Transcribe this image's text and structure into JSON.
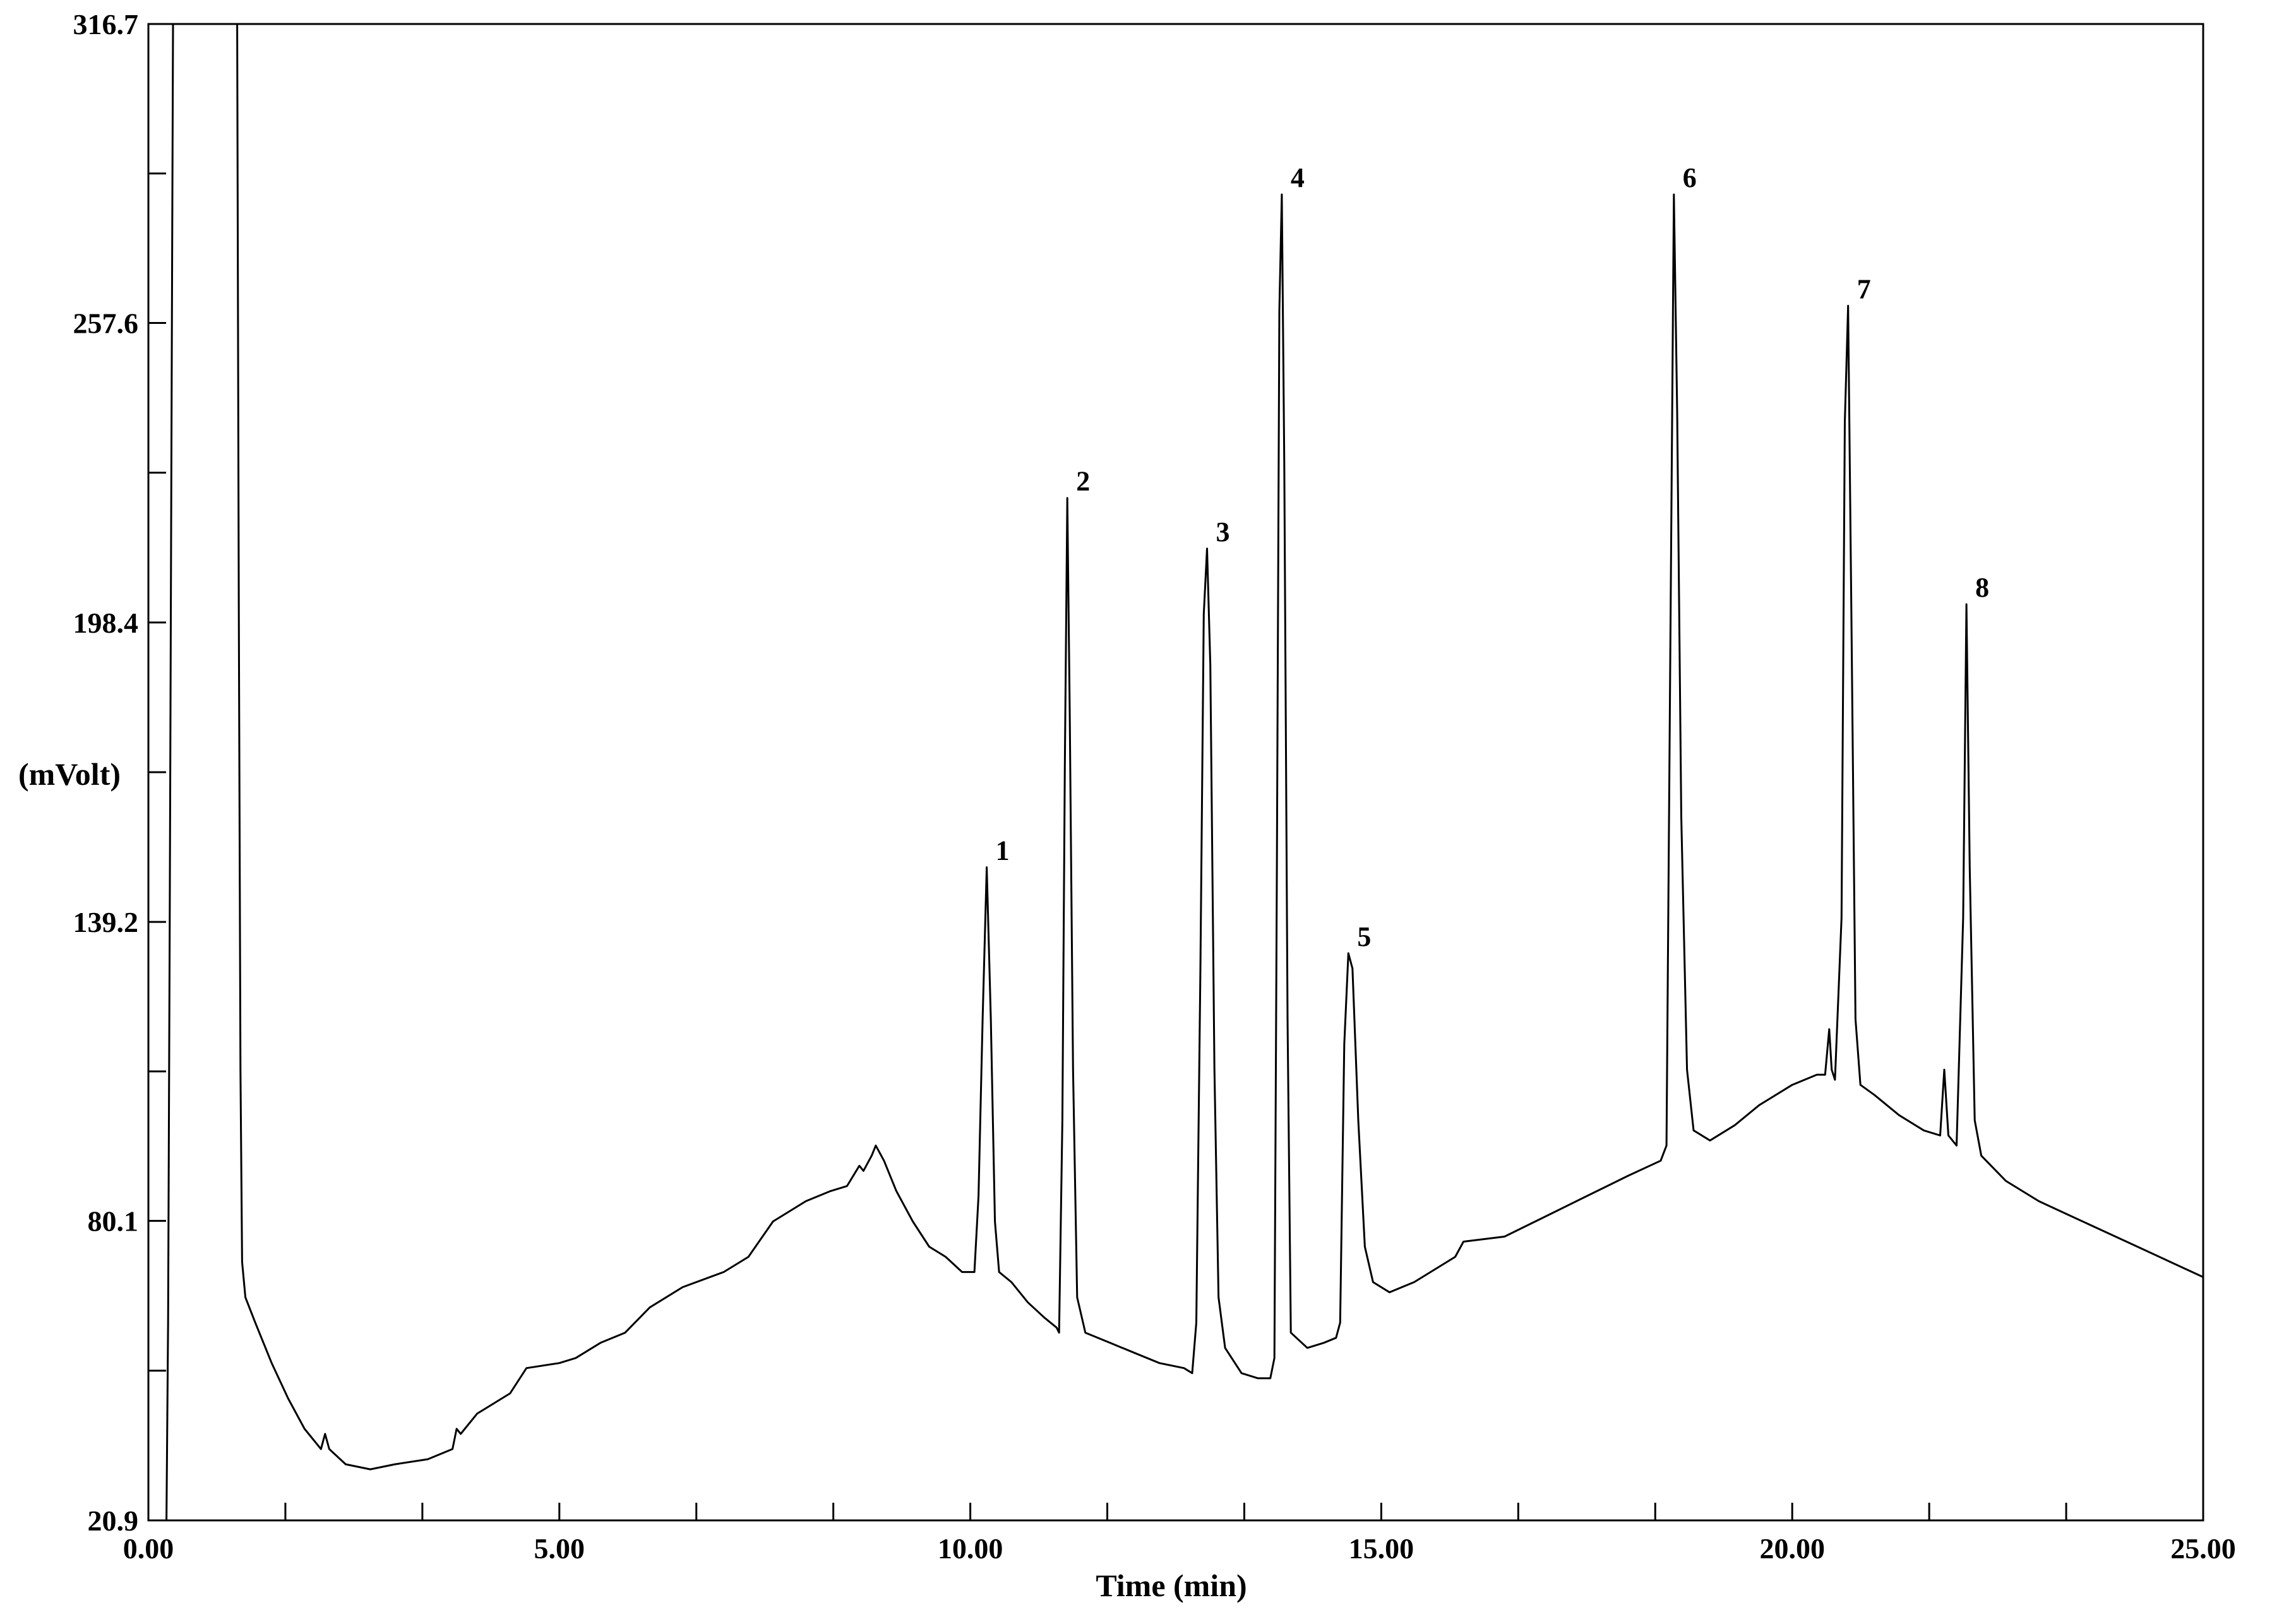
{
  "chart_data": {
    "type": "line",
    "title": "",
    "xlabel": "Time (min)",
    "ylabel": "(mVolt)",
    "xlim": [
      0,
      25
    ],
    "ylim": [
      20.9,
      316.7
    ],
    "x_ticks": [
      "0.00",
      "5.00",
      "10.00",
      "15.00",
      "20.00",
      "25.00"
    ],
    "y_ticks": [
      "20.9",
      "80.1",
      "139.2",
      "198.4",
      "257.6",
      "316.7"
    ],
    "grid": false,
    "series": [
      {
        "name": "",
        "color": "#000000",
        "points": [
          [
            0.22,
            20.9
          ],
          [
            0.24,
            60
          ],
          [
            0.26,
            140
          ],
          [
            0.28,
            230
          ],
          [
            0.3,
            316.7
          ],
          [
            1.08,
            316.7
          ],
          [
            1.1,
            200
          ],
          [
            1.12,
            110
          ],
          [
            1.14,
            72
          ],
          [
            1.18,
            65
          ],
          [
            1.3,
            60
          ],
          [
            1.5,
            52
          ],
          [
            1.7,
            45
          ],
          [
            1.9,
            39
          ],
          [
            2.0,
            37
          ],
          [
            2.1,
            35
          ],
          [
            2.15,
            38
          ],
          [
            2.2,
            35
          ],
          [
            2.4,
            32
          ],
          [
            2.7,
            31
          ],
          [
            3.0,
            32
          ],
          [
            3.4,
            33
          ],
          [
            3.7,
            35
          ],
          [
            3.75,
            39
          ],
          [
            3.8,
            38
          ],
          [
            4.0,
            42
          ],
          [
            4.4,
            46
          ],
          [
            4.6,
            51
          ],
          [
            5.0,
            52
          ],
          [
            5.2,
            53
          ],
          [
            5.5,
            56
          ],
          [
            5.8,
            58
          ],
          [
            6.1,
            63
          ],
          [
            6.5,
            67
          ],
          [
            7.0,
            70
          ],
          [
            7.3,
            73
          ],
          [
            7.6,
            80
          ],
          [
            8.0,
            84
          ],
          [
            8.3,
            86
          ],
          [
            8.5,
            87
          ],
          [
            8.65,
            91
          ],
          [
            8.7,
            90
          ],
          [
            8.8,
            93
          ],
          [
            8.85,
            95
          ],
          [
            8.95,
            92
          ],
          [
            9.1,
            86
          ],
          [
            9.3,
            80
          ],
          [
            9.5,
            75
          ],
          [
            9.7,
            73
          ],
          [
            9.9,
            70
          ],
          [
            10.05,
            70
          ],
          [
            10.1,
            85
          ],
          [
            10.15,
            120
          ],
          [
            10.2,
            150
          ],
          [
            10.25,
            120
          ],
          [
            10.3,
            80
          ],
          [
            10.35,
            70
          ],
          [
            10.5,
            68
          ],
          [
            10.7,
            64
          ],
          [
            10.9,
            61
          ],
          [
            11.05,
            59
          ],
          [
            11.08,
            58
          ],
          [
            11.12,
            100
          ],
          [
            11.15,
            170
          ],
          [
            11.18,
            223
          ],
          [
            11.21,
            180
          ],
          [
            11.25,
            110
          ],
          [
            11.3,
            65
          ],
          [
            11.4,
            58
          ],
          [
            11.7,
            56
          ],
          [
            12.0,
            54
          ],
          [
            12.3,
            52
          ],
          [
            12.6,
            51
          ],
          [
            12.7,
            50
          ],
          [
            12.75,
            60
          ],
          [
            12.8,
            130
          ],
          [
            12.84,
            200
          ],
          [
            12.88,
            213
          ],
          [
            12.92,
            190
          ],
          [
            12.97,
            110
          ],
          [
            13.02,
            65
          ],
          [
            13.1,
            55
          ],
          [
            13.3,
            50
          ],
          [
            13.5,
            49
          ],
          [
            13.65,
            49
          ],
          [
            13.7,
            53
          ],
          [
            13.73,
            150
          ],
          [
            13.76,
            260
          ],
          [
            13.79,
            283
          ],
          [
            13.82,
            230
          ],
          [
            13.86,
            120
          ],
          [
            13.9,
            58
          ],
          [
            14.1,
            55
          ],
          [
            14.3,
            56
          ],
          [
            14.45,
            57
          ],
          [
            14.5,
            60
          ],
          [
            14.55,
            115
          ],
          [
            14.6,
            133
          ],
          [
            14.65,
            130
          ],
          [
            14.72,
            100
          ],
          [
            14.8,
            75
          ],
          [
            14.9,
            68
          ],
          [
            15.1,
            66
          ],
          [
            15.4,
            68
          ],
          [
            15.7,
            71
          ],
          [
            15.9,
            73
          ],
          [
            16.0,
            76
          ],
          [
            16.5,
            77
          ],
          [
            17.0,
            81
          ],
          [
            17.5,
            85
          ],
          [
            18.0,
            89
          ],
          [
            18.4,
            92
          ],
          [
            18.47,
            95
          ],
          [
            18.52,
            200
          ],
          [
            18.56,
            283
          ],
          [
            18.6,
            240
          ],
          [
            18.65,
            160
          ],
          [
            18.72,
            110
          ],
          [
            18.8,
            98
          ],
          [
            19.0,
            96
          ],
          [
            19.3,
            99
          ],
          [
            19.6,
            103
          ],
          [
            20.0,
            107
          ],
          [
            20.3,
            109
          ],
          [
            20.4,
            109
          ],
          [
            20.45,
            118
          ],
          [
            20.48,
            110
          ],
          [
            20.52,
            108
          ],
          [
            20.6,
            140
          ],
          [
            20.64,
            238
          ],
          [
            20.68,
            261
          ],
          [
            20.72,
            200
          ],
          [
            20.77,
            120
          ],
          [
            20.83,
            107
          ],
          [
            21.0,
            105
          ],
          [
            21.3,
            101
          ],
          [
            21.6,
            98
          ],
          [
            21.8,
            97
          ],
          [
            21.85,
            110
          ],
          [
            21.9,
            97
          ],
          [
            22.0,
            95
          ],
          [
            22.08,
            140
          ],
          [
            22.12,
            202
          ],
          [
            22.16,
            150
          ],
          [
            22.22,
            100
          ],
          [
            22.3,
            93
          ],
          [
            22.6,
            88
          ],
          [
            23.0,
            84
          ],
          [
            23.4,
            81
          ],
          [
            23.8,
            78
          ],
          [
            24.2,
            75
          ],
          [
            24.6,
            72
          ],
          [
            25.0,
            69
          ]
        ]
      }
    ],
    "annotations": [
      {
        "text": "1",
        "x": 10.2,
        "y": 150
      },
      {
        "text": "2",
        "x": 11.18,
        "y": 223
      },
      {
        "text": "3",
        "x": 12.88,
        "y": 213
      },
      {
        "text": "4",
        "x": 13.79,
        "y": 283
      },
      {
        "text": "5",
        "x": 14.6,
        "y": 133
      },
      {
        "text": "6",
        "x": 18.56,
        "y": 283
      },
      {
        "text": "7",
        "x": 20.68,
        "y": 261
      },
      {
        "text": "8",
        "x": 22.12,
        "y": 202
      }
    ]
  }
}
